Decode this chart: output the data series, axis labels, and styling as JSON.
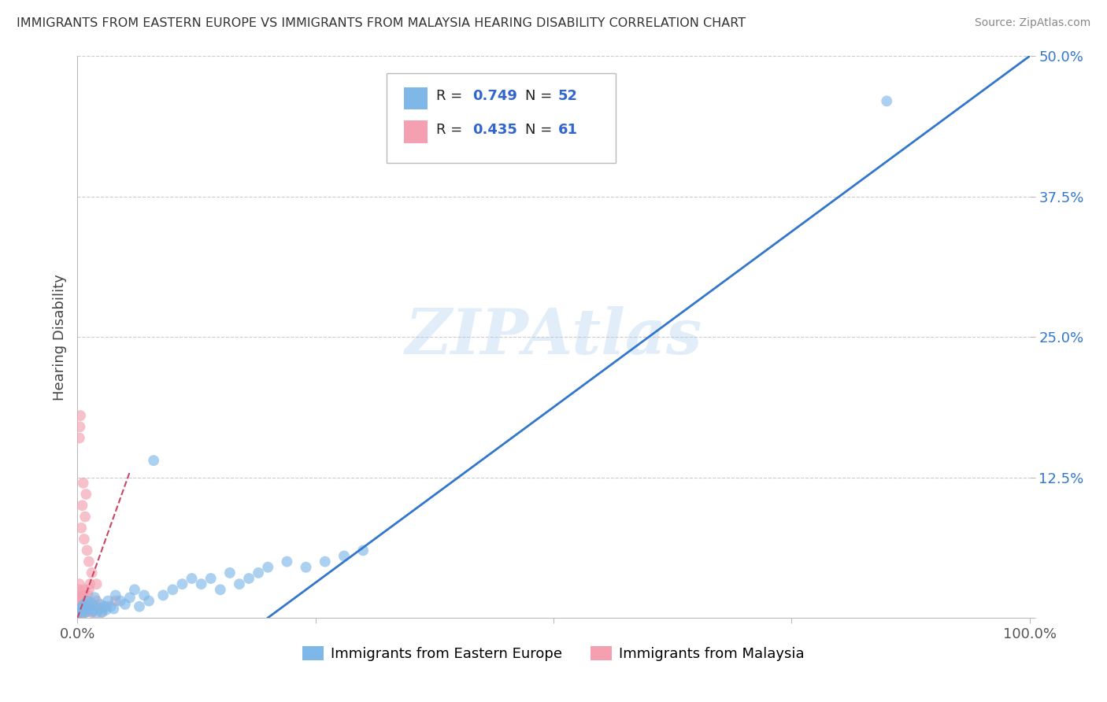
{
  "title": "IMMIGRANTS FROM EASTERN EUROPE VS IMMIGRANTS FROM MALAYSIA HEARING DISABILITY CORRELATION CHART",
  "source": "Source: ZipAtlas.com",
  "ylabel": "Hearing Disability",
  "xlim": [
    0,
    100
  ],
  "ylim": [
    0,
    50
  ],
  "color_eastern": "#7EB8E8",
  "color_malaysia": "#F4A0B0",
  "color_line_eastern": "#3377CC",
  "color_line_malaysia": "#CC4466",
  "color_legend_values": "#3366CC",
  "color_grid": "#CCCCCC",
  "watermark": "ZIPAtlas",
  "background_color": "#FFFFFF",
  "eastern_europe_x": [
    0.2,
    0.3,
    0.4,
    0.5,
    0.6,
    0.7,
    0.8,
    0.9,
    1.0,
    1.1,
    1.2,
    1.4,
    1.5,
    1.6,
    1.8,
    2.0,
    2.2,
    2.4,
    2.6,
    2.8,
    3.0,
    3.2,
    3.5,
    3.8,
    4.0,
    4.5,
    5.0,
    5.5,
    6.0,
    6.5,
    7.0,
    7.5,
    8.0,
    9.0,
    10.0,
    11.0,
    12.0,
    13.0,
    14.0,
    15.0,
    16.0,
    17.0,
    18.0,
    19.0,
    20.0,
    22.0,
    24.0,
    26.0,
    28.0,
    30.0,
    85.0
  ],
  "eastern_europe_y": [
    0.5,
    0.8,
    0.3,
    1.0,
    0.6,
    1.2,
    0.8,
    0.5,
    1.5,
    0.7,
    1.0,
    0.9,
    1.3,
    0.6,
    1.8,
    0.4,
    0.8,
    1.2,
    0.5,
    1.0,
    0.7,
    1.5,
    1.0,
    0.8,
    2.0,
    1.5,
    1.2,
    1.8,
    2.5,
    1.0,
    2.0,
    1.5,
    14.0,
    2.0,
    2.5,
    3.0,
    3.5,
    3.0,
    3.5,
    2.5,
    4.0,
    3.0,
    3.5,
    4.0,
    4.5,
    5.0,
    4.5,
    5.0,
    5.5,
    6.0,
    46.0
  ],
  "malaysia_x": [
    0.05,
    0.08,
    0.1,
    0.12,
    0.15,
    0.18,
    0.2,
    0.22,
    0.25,
    0.28,
    0.3,
    0.33,
    0.35,
    0.38,
    0.4,
    0.42,
    0.45,
    0.48,
    0.5,
    0.55,
    0.6,
    0.65,
    0.7,
    0.8,
    0.9,
    1.0,
    1.1,
    1.2,
    1.3,
    1.5,
    1.8,
    2.0,
    2.5,
    3.0,
    4.0,
    0.1,
    0.15,
    0.2,
    0.25,
    0.3,
    0.35,
    0.4,
    0.5,
    0.6,
    0.8,
    1.0,
    1.5,
    2.0,
    0.2,
    0.25,
    0.3,
    0.4,
    0.5,
    0.6,
    0.7,
    0.8,
    0.9,
    1.0,
    1.2,
    1.5,
    2.0
  ],
  "malaysia_y": [
    0.3,
    0.5,
    0.4,
    0.6,
    0.8,
    0.5,
    0.7,
    1.0,
    0.6,
    0.8,
    1.2,
    0.5,
    0.7,
    1.0,
    1.5,
    0.8,
    1.0,
    1.3,
    1.8,
    1.0,
    1.5,
    2.0,
    2.5,
    0.5,
    1.0,
    1.5,
    2.0,
    2.5,
    3.0,
    0.5,
    1.0,
    1.5,
    0.5,
    1.0,
    1.5,
    2.0,
    2.5,
    3.0,
    0.5,
    1.0,
    1.5,
    2.0,
    0.5,
    1.0,
    0.5,
    1.0,
    0.5,
    1.0,
    16.0,
    17.0,
    18.0,
    8.0,
    10.0,
    12.0,
    7.0,
    9.0,
    11.0,
    6.0,
    5.0,
    4.0,
    3.0
  ],
  "ee_trend_x": [
    20,
    100
  ],
  "ee_trend_y": [
    0,
    50
  ],
  "mal_trend_x": [
    0,
    5.5
  ],
  "mal_trend_y": [
    0,
    13
  ]
}
